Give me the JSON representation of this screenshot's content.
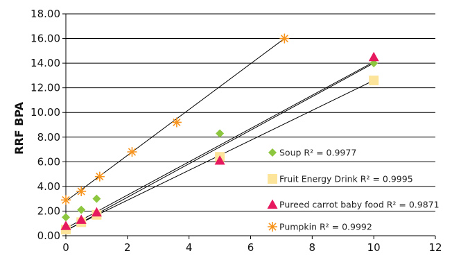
{
  "chart_data": {
    "type": "scatter",
    "title": "",
    "xlabel": "",
    "ylabel": "RRF BPA",
    "xlim": [
      0,
      12
    ],
    "ylim": [
      0,
      18
    ],
    "x_ticks": [
      "0",
      "2",
      "4",
      "6",
      "8",
      "10",
      "12"
    ],
    "y_ticks": [
      "0.00",
      "2.00",
      "4.00",
      "6.00",
      "8.00",
      "10.00",
      "12.00",
      "14.00",
      "16.00",
      "18.00"
    ],
    "grid": true,
    "legend_position": "right",
    "series": [
      {
        "name": "Soup R² = 0.9977",
        "marker": "diamond",
        "color": "#8dc63f",
        "points": [
          [
            0,
            1.5
          ],
          [
            0.5,
            2.1
          ],
          [
            1.0,
            3.0
          ],
          [
            5.0,
            8.3
          ],
          [
            10.0,
            14.0
          ]
        ],
        "trendline": [
          [
            0,
            0.6
          ],
          [
            10,
            14.1
          ]
        ]
      },
      {
        "name": "Fruit Energy Drink R² = 0.9995",
        "marker": "square",
        "color": "#fde49b",
        "points": [
          [
            0,
            0.5
          ],
          [
            0.5,
            1.1
          ],
          [
            1.0,
            1.7
          ],
          [
            5.0,
            6.4
          ],
          [
            10.0,
            12.6
          ]
        ],
        "trendline": [
          [
            0,
            0.45
          ],
          [
            10,
            12.6
          ]
        ]
      },
      {
        "name": "Pureed carrot baby food R² = 0.9871",
        "marker": "triangle",
        "color": "#e6195f",
        "points": [
          [
            0,
            0.8
          ],
          [
            0.5,
            1.3
          ],
          [
            1.0,
            1.9
          ],
          [
            5.0,
            6.1
          ],
          [
            10.0,
            14.5
          ]
        ],
        "trendline": [
          [
            0,
            0.4
          ],
          [
            10,
            14.0
          ]
        ]
      },
      {
        "name": "Pumpkin R² = 0.9992",
        "marker": "star",
        "color": "#f7941d",
        "points": [
          [
            0,
            2.9
          ],
          [
            0.5,
            3.6
          ],
          [
            1.1,
            4.8
          ],
          [
            2.15,
            6.8
          ],
          [
            3.6,
            9.2
          ],
          [
            7.1,
            16.0
          ]
        ],
        "trendline": [
          [
            0,
            2.8
          ],
          [
            7.1,
            16.0
          ]
        ]
      }
    ]
  }
}
